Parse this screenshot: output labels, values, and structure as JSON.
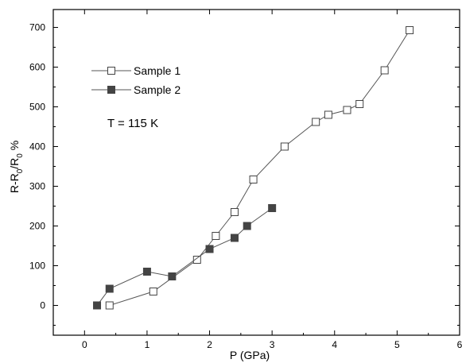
{
  "chart_data": {
    "type": "scatter",
    "title": "",
    "xlabel": "P (GPa)",
    "ylabel_parts": [
      "R-R",
      "0",
      "/R",
      "0",
      " %"
    ],
    "xlim": [
      -0.5,
      6
    ],
    "ylim": [
      -75,
      745
    ],
    "x_ticks": [
      0,
      1,
      2,
      3,
      4,
      5,
      6
    ],
    "y_ticks": [
      0,
      100,
      200,
      300,
      400,
      500,
      600,
      700
    ],
    "grid": false,
    "legend_position": "upper-left",
    "annotation": "T =  115  K",
    "series": [
      {
        "name": "Sample 1",
        "marker": "open-square",
        "color": "#555555",
        "points": [
          [
            0.4,
            0
          ],
          [
            1.1,
            35
          ],
          [
            1.8,
            115
          ],
          [
            2.1,
            175
          ],
          [
            2.4,
            235
          ],
          [
            2.7,
            317
          ],
          [
            3.2,
            400
          ],
          [
            3.7,
            462
          ],
          [
            3.9,
            480
          ],
          [
            4.2,
            492
          ],
          [
            4.4,
            507
          ],
          [
            4.8,
            592
          ],
          [
            5.2,
            693
          ]
        ]
      },
      {
        "name": "Sample 2",
        "marker": "filled-square",
        "color": "#555555",
        "points": [
          [
            0.2,
            0
          ],
          [
            0.4,
            42
          ],
          [
            1.0,
            85
          ],
          [
            1.4,
            73
          ],
          [
            2.0,
            142
          ],
          [
            2.4,
            170
          ],
          [
            2.6,
            200
          ],
          [
            3.0,
            245
          ]
        ]
      }
    ]
  }
}
